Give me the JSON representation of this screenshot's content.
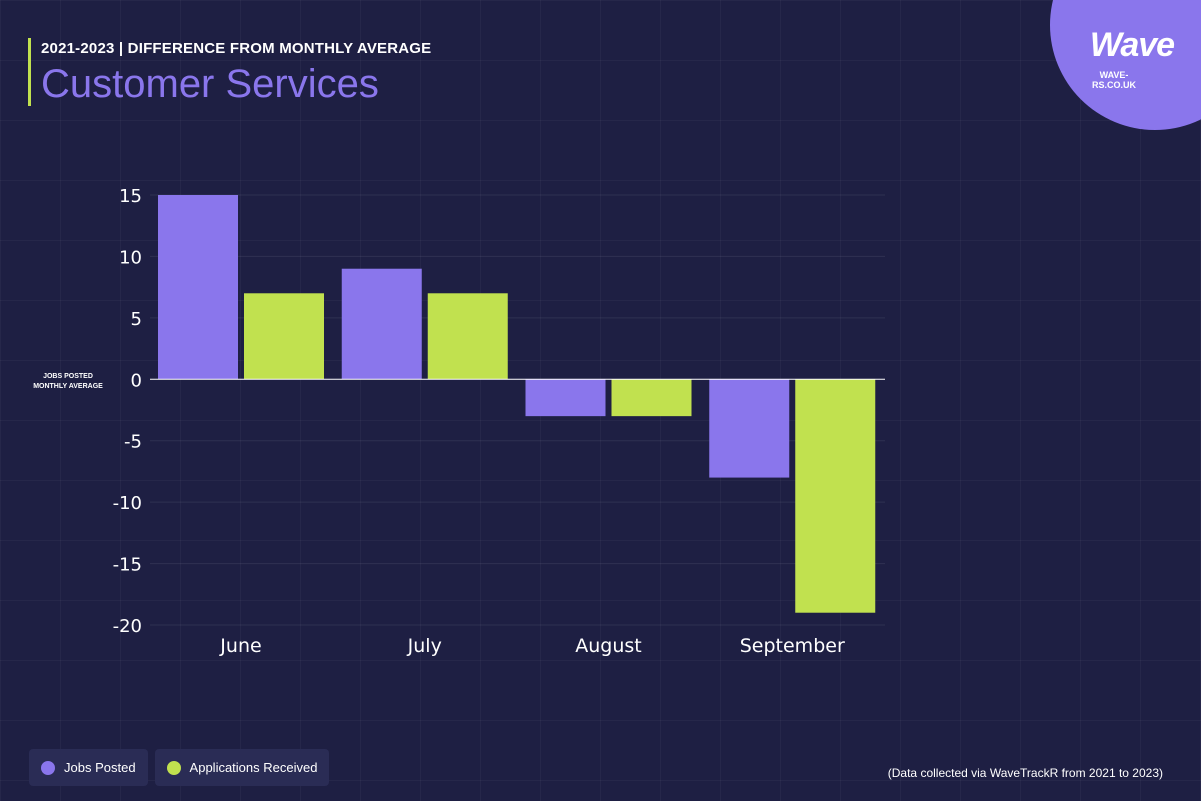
{
  "header": {
    "subtitle": "2021-2023 | DIFFERENCE FROM MONTHLY AVERAGE",
    "title": "Customer Services"
  },
  "logo": {
    "wordmark": "Wave",
    "url": "WAVE-RS.CO.UK"
  },
  "axis_note": {
    "line1": "JOBS POSTED",
    "line2": "MONTHLY AVERAGE"
  },
  "footnote": "(Data collected via WaveTrackR from 2021 to 2023)",
  "chart_data": {
    "type": "bar",
    "categories": [
      "June",
      "July",
      "August",
      "September"
    ],
    "series": [
      {
        "name": "Jobs Posted",
        "values": [
          15,
          9,
          -3,
          -8
        ],
        "color": "#8a76ec"
      },
      {
        "name": "Applications Received",
        "values": [
          7,
          7,
          -3,
          -19
        ],
        "color": "#c1e14f"
      }
    ],
    "ylim": [
      -20,
      15
    ],
    "yticks": [
      15,
      10,
      5,
      0,
      -5,
      -10,
      -15,
      -20
    ],
    "grid": true,
    "legend_position": "bottom-left"
  },
  "colors": {
    "background": "#1e1f43",
    "accent_purple": "#8a76ec",
    "accent_green": "#c1e14f"
  }
}
